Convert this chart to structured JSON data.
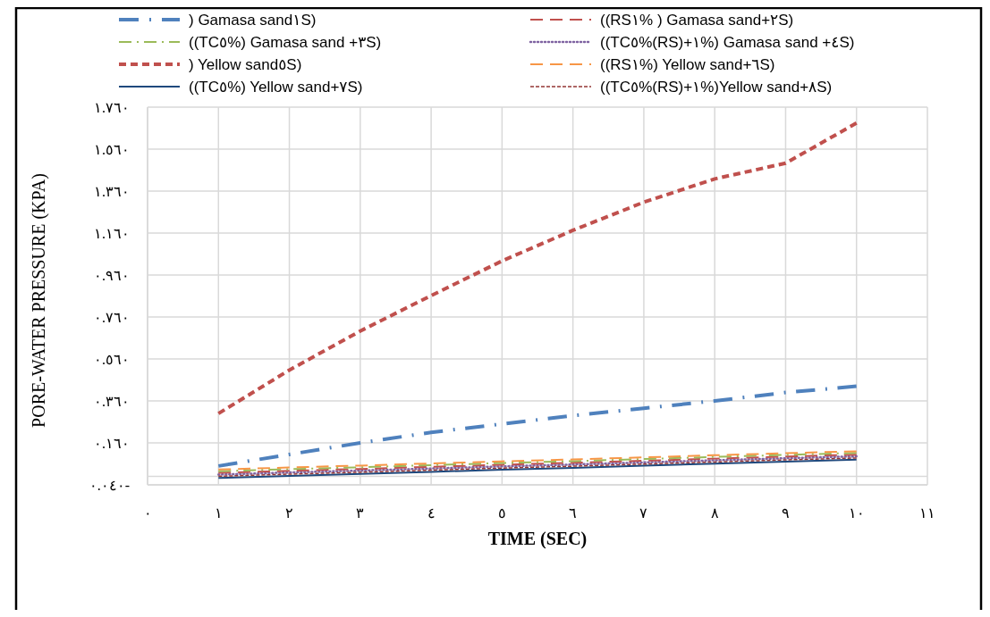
{
  "chart_data": {
    "type": "line",
    "xlabel": "TIME (SEC)",
    "ylabel": "PORE-WATER PRESSURE (KPA)",
    "x": [
      1,
      2,
      3,
      4,
      5,
      6,
      7,
      8,
      9,
      10
    ],
    "xlim": [
      0,
      11
    ],
    "xticks": [
      {
        "value": 0,
        "label": "٠"
      },
      {
        "value": 1,
        "label": "١"
      },
      {
        "value": 2,
        "label": "٢"
      },
      {
        "value": 3,
        "label": "٣"
      },
      {
        "value": 4,
        "label": "٤"
      },
      {
        "value": 5,
        "label": "٥"
      },
      {
        "value": 6,
        "label": "٦"
      },
      {
        "value": 7,
        "label": "٧"
      },
      {
        "value": 8,
        "label": "٨"
      },
      {
        "value": 9,
        "label": "٩"
      },
      {
        "value": 10,
        "label": "١٠"
      },
      {
        "value": 11,
        "label": "١١"
      }
    ],
    "ylim": [
      -0.04,
      1.76
    ],
    "yticks": [
      {
        "value": -0.04,
        "label": "٠.٠٤٠-"
      },
      {
        "value": 0.16,
        "label": "٠.١٦٠"
      },
      {
        "value": 0.36,
        "label": "٠.٣٦٠"
      },
      {
        "value": 0.56,
        "label": "٠.٥٦٠"
      },
      {
        "value": 0.76,
        "label": "٠.٧٦٠"
      },
      {
        "value": 0.96,
        "label": "٠.٩٦٠"
      },
      {
        "value": 1.16,
        "label": "١.١٦٠"
      },
      {
        "value": 1.36,
        "label": "١.٣٦٠"
      },
      {
        "value": 1.56,
        "label": "١.٥٦٠"
      },
      {
        "value": 1.76,
        "label": "١.٧٦٠"
      }
    ],
    "ref_lines": [
      {
        "axis": "y",
        "value": 0,
        "color": "#d9d9d9"
      }
    ],
    "grid": true,
    "legend": "top",
    "marker": "none",
    "series": [
      {
        "name": ") Gamasa sand١S)",
        "color": "#4f81bd",
        "line_style": "dashdot",
        "values": [
          0.05,
          0.105,
          0.16,
          0.21,
          0.25,
          0.29,
          0.325,
          0.36,
          0.4,
          0.43
        ]
      },
      {
        "name": "((RS١% ) Gamasa sand+٢S)",
        "color": "#c0504d",
        "line_style": "longdash",
        "values": [
          0.017,
          0.027,
          0.036,
          0.046,
          0.056,
          0.065,
          0.075,
          0.085,
          0.095,
          0.104
        ]
      },
      {
        "name": "((TC٥%) Gamasa sand +٣S)",
        "color": "#9bbb59",
        "line_style": "dashdot-thin",
        "values": [
          0.025,
          0.035,
          0.044,
          0.054,
          0.064,
          0.073,
          0.083,
          0.093,
          0.103,
          0.112
        ]
      },
      {
        "name": "((TC٥%(RS)+١%) Gamasa sand +٤S)",
        "color": "#8064a2",
        "line_style": "dotted",
        "values": [
          0.009,
          0.019,
          0.028,
          0.038,
          0.048,
          0.057,
          0.067,
          0.077,
          0.087,
          0.096
        ]
      },
      {
        "name": ") Yellow sand٥S)",
        "color": "#c0504d",
        "line_style": "dashed",
        "values": [
          0.3,
          0.507,
          0.693,
          0.862,
          1.027,
          1.173,
          1.307,
          1.418,
          1.493,
          1.684
        ]
      },
      {
        "name": "((RS١%) Yellow sand+٦S)",
        "color": "#f79646",
        "line_style": "longdash",
        "values": [
          0.033,
          0.043,
          0.052,
          0.062,
          0.072,
          0.081,
          0.091,
          0.101,
          0.111,
          0.12
        ]
      },
      {
        "name": "((TC٥%) Yellow sand+٧S)",
        "color": "#1f497d",
        "line_style": "solid",
        "values": [
          -0.007,
          0.003,
          0.012,
          0.022,
          0.032,
          0.041,
          0.051,
          0.061,
          0.071,
          0.08
        ]
      },
      {
        "name": "((TC٥%(RS)+١%)Yellow sand+٨S)",
        "color": "#943634",
        "line_style": "shortdash",
        "values": [
          0.001,
          0.011,
          0.02,
          0.03,
          0.04,
          0.049,
          0.059,
          0.069,
          0.079,
          0.088
        ]
      }
    ]
  }
}
